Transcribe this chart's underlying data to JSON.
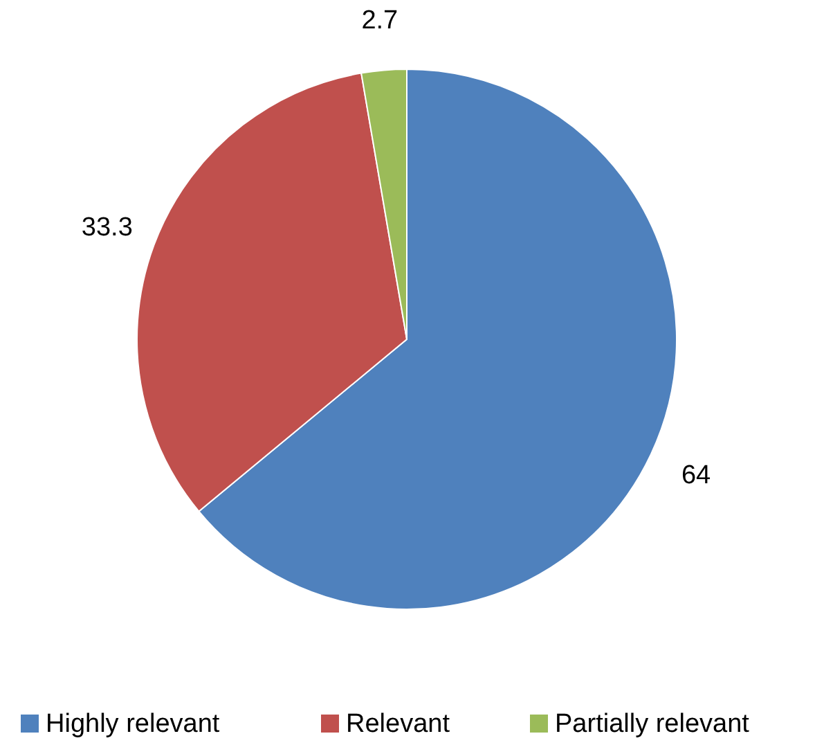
{
  "chart_data": {
    "type": "pie",
    "categories": [
      "Highly relevant",
      "Relevant",
      "Partially relevant"
    ],
    "values": [
      64,
      33.3,
      2.7
    ],
    "colors": [
      "#4f81bd",
      "#c0504d",
      "#9bbb59"
    ],
    "data_labels": true,
    "legend": "bottom"
  }
}
